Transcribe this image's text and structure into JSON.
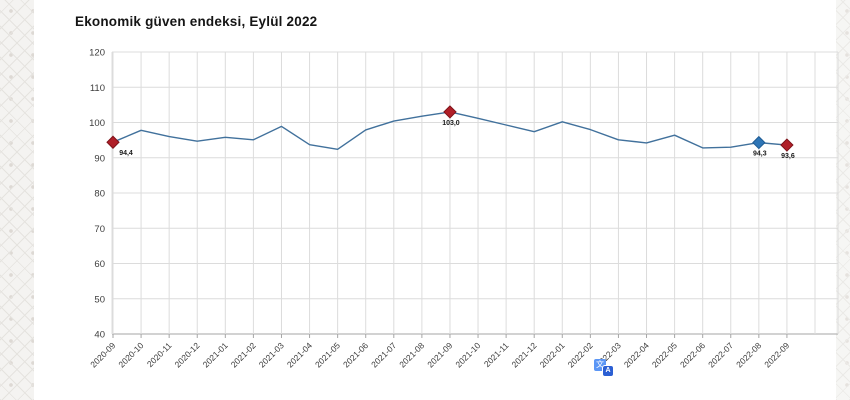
{
  "translate_widget": {
    "icon": "google-translate-icon",
    "glyph_primary": "文",
    "glyph_secondary": "A"
  },
  "chart_data": {
    "type": "line",
    "title": "Ekonomik güven endeksi, Eylül 2022",
    "xlabel": "",
    "ylabel": "",
    "ylim": [
      40,
      120
    ],
    "yticks": [
      "120",
      "110",
      "100",
      "90",
      "80",
      "70",
      "60",
      "50",
      "40"
    ],
    "grid": true,
    "legend": "none",
    "line_color": "#41719c",
    "grid_color": "#dcdcdc",
    "axis_color": "#a6a6a6",
    "tick_text_color": "#3d3d3d",
    "value_label_color": "#1a1a1a",
    "categories": [
      "2020-09",
      "2020-10",
      "2020-11",
      "2020-12",
      "2021-01",
      "2021-02",
      "2021-03",
      "2021-04",
      "2021-05",
      "2021-06",
      "2021-07",
      "2021-08",
      "2021-09",
      "2021-10",
      "2021-11",
      "2021-12",
      "2022-01",
      "2022-02",
      "2022-03",
      "2022-04",
      "2022-05",
      "2022-06",
      "2022-07",
      "2022-08",
      "2022-09"
    ],
    "values": [
      94.4,
      97.8,
      96.0,
      94.7,
      95.8,
      95.1,
      98.9,
      93.7,
      92.4,
      97.9,
      100.4,
      101.8,
      103.0,
      101.2,
      99.3,
      97.4,
      100.2,
      98.0,
      95.1,
      94.2,
      96.4,
      92.8,
      93.0,
      94.3,
      93.6
    ],
    "highlights": [
      {
        "index": 0,
        "label": "94,4",
        "fill": "#b01f28",
        "stroke": "#7d1219"
      },
      {
        "index": 12,
        "label": "103,0",
        "fill": "#b01f28",
        "stroke": "#7d1219"
      },
      {
        "index": 23,
        "label": "94,3",
        "fill": "#2e75b6",
        "stroke": "#1f5c94"
      },
      {
        "index": 24,
        "label": "93,6",
        "fill": "#b01f28",
        "stroke": "#7d1219"
      }
    ]
  }
}
